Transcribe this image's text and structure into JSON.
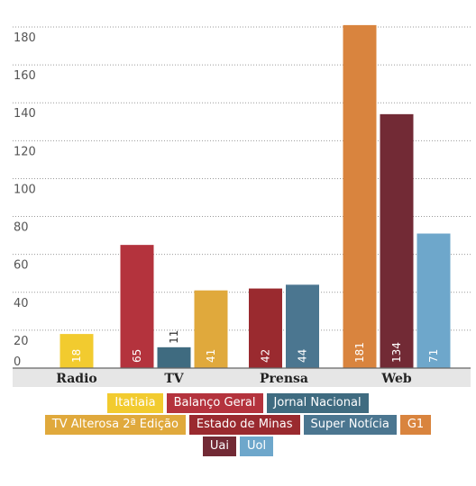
{
  "chart_data": {
    "type": "bar",
    "title": "",
    "xlabel": "",
    "ylabel": "",
    "ylim": [
      0,
      185
    ],
    "yticks": [
      0,
      20,
      40,
      60,
      80,
      100,
      120,
      140,
      160,
      180
    ],
    "grid": true,
    "legend_position": "bottom",
    "categories": [
      "Radio",
      "TV",
      "Prensa",
      "Web"
    ],
    "series": [
      {
        "name": "Itatiaia",
        "color": "#f2cb2f",
        "category": "Radio",
        "value": 18
      },
      {
        "name": "Balanço Geral",
        "color": "#b4333d",
        "category": "TV",
        "value": 65
      },
      {
        "name": "Jornal Nacional",
        "color": "#3f6b80",
        "category": "TV",
        "value": 11
      },
      {
        "name": "TV Alterosa 2ª Edição",
        "color": "#e0a93c",
        "category": "TV",
        "value": 41
      },
      {
        "name": "Estado de Minas",
        "color": "#9a2a2f",
        "category": "Prensa",
        "value": 42
      },
      {
        "name": "Super Notícia",
        "color": "#4b7690",
        "category": "Prensa",
        "value": 44
      },
      {
        "name": "G1",
        "color": "#d9843e",
        "category": "Web",
        "value": 181
      },
      {
        "name": "Uai",
        "color": "#722a35",
        "category": "Web",
        "value": 134
      },
      {
        "name": "Uol",
        "color": "#6ea7cb",
        "category": "Web",
        "value": 71
      }
    ],
    "label_colors": {
      "light": "#ffffff",
      "dark": "#333333"
    }
  }
}
